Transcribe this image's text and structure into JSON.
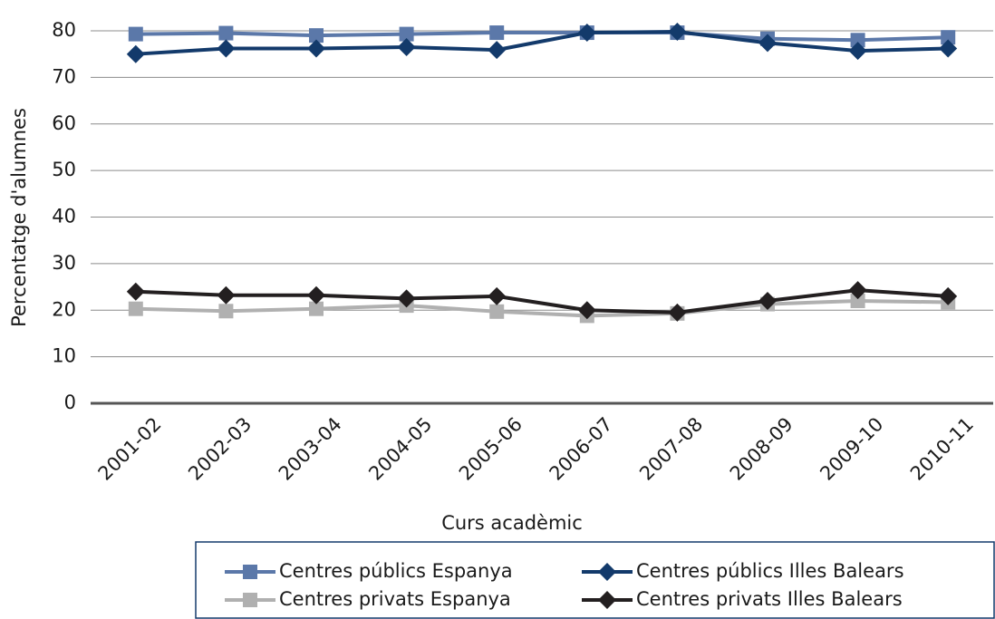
{
  "chart_data": {
    "type": "line",
    "y_label": "Percentatge d'alumnes",
    "x_label": "Curs acadèmic",
    "categories": [
      "2001-02",
      "2002-03",
      "2003-04",
      "2004-05",
      "2005-06",
      "2006-07",
      "2007-08",
      "2008-09",
      "2009-10",
      "2010-11"
    ],
    "series": [
      {
        "name": "Centres públics Espanya",
        "color": "#5b78a9",
        "marker": "square",
        "values": [
          79.3,
          79.5,
          79,
          79.3,
          79.6,
          79.6,
          79.6,
          78.3,
          78,
          78.6
        ]
      },
      {
        "name": "Centres públics Illes Balears",
        "color": "#133a6b",
        "marker": "diamond",
        "values": [
          75,
          76.2,
          76.2,
          76.5,
          75.9,
          79.6,
          79.8,
          77.4,
          75.7,
          76.2
        ]
      },
      {
        "name": "Centres privats Espanya",
        "color": "#b0b0b0",
        "marker": "square",
        "values": [
          20.3,
          19.8,
          20.3,
          21,
          19.7,
          18.8,
          19.3,
          21.3,
          22,
          21.7
        ]
      },
      {
        "name": "Centres privats Illes Balears",
        "color": "#231f20",
        "marker": "diamond",
        "values": [
          24,
          23.2,
          23.2,
          22.5,
          23,
          20,
          19.5,
          22,
          24.3,
          23
        ]
      }
    ],
    "ylim": [
      0,
      80
    ],
    "yticks": [
      0,
      10,
      20,
      30,
      40,
      50,
      60,
      70,
      80
    ],
    "grid": true
  }
}
